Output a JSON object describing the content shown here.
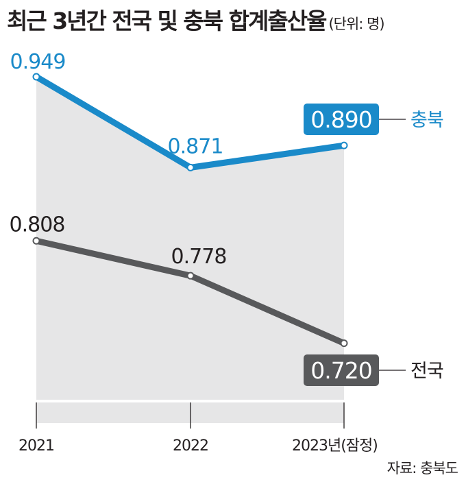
{
  "title": "최근 3년간 전국 및 충북 합계출산율",
  "unit": "(단위: 명)",
  "source": "자료: 충북도",
  "colors": {
    "chungbuk": "#1a8ac9",
    "national": "#58595b",
    "area": "#e6e6e7"
  },
  "chart_data": {
    "type": "line",
    "categories": [
      "2021",
      "2022",
      "2023년(잠정)"
    ],
    "series": [
      {
        "name": "충북",
        "values": [
          0.949,
          0.871,
          0.89
        ]
      },
      {
        "name": "전국",
        "values": [
          0.808,
          0.778,
          0.72
        ]
      }
    ],
    "data_labels": {
      "충북": [
        "0.949",
        "0.871",
        "0.890"
      ],
      "전국": [
        "0.808",
        "0.778",
        "0.720"
      ]
    },
    "xlabel": "",
    "ylabel": "",
    "grid": false,
    "legend": "right, at line ends"
  }
}
